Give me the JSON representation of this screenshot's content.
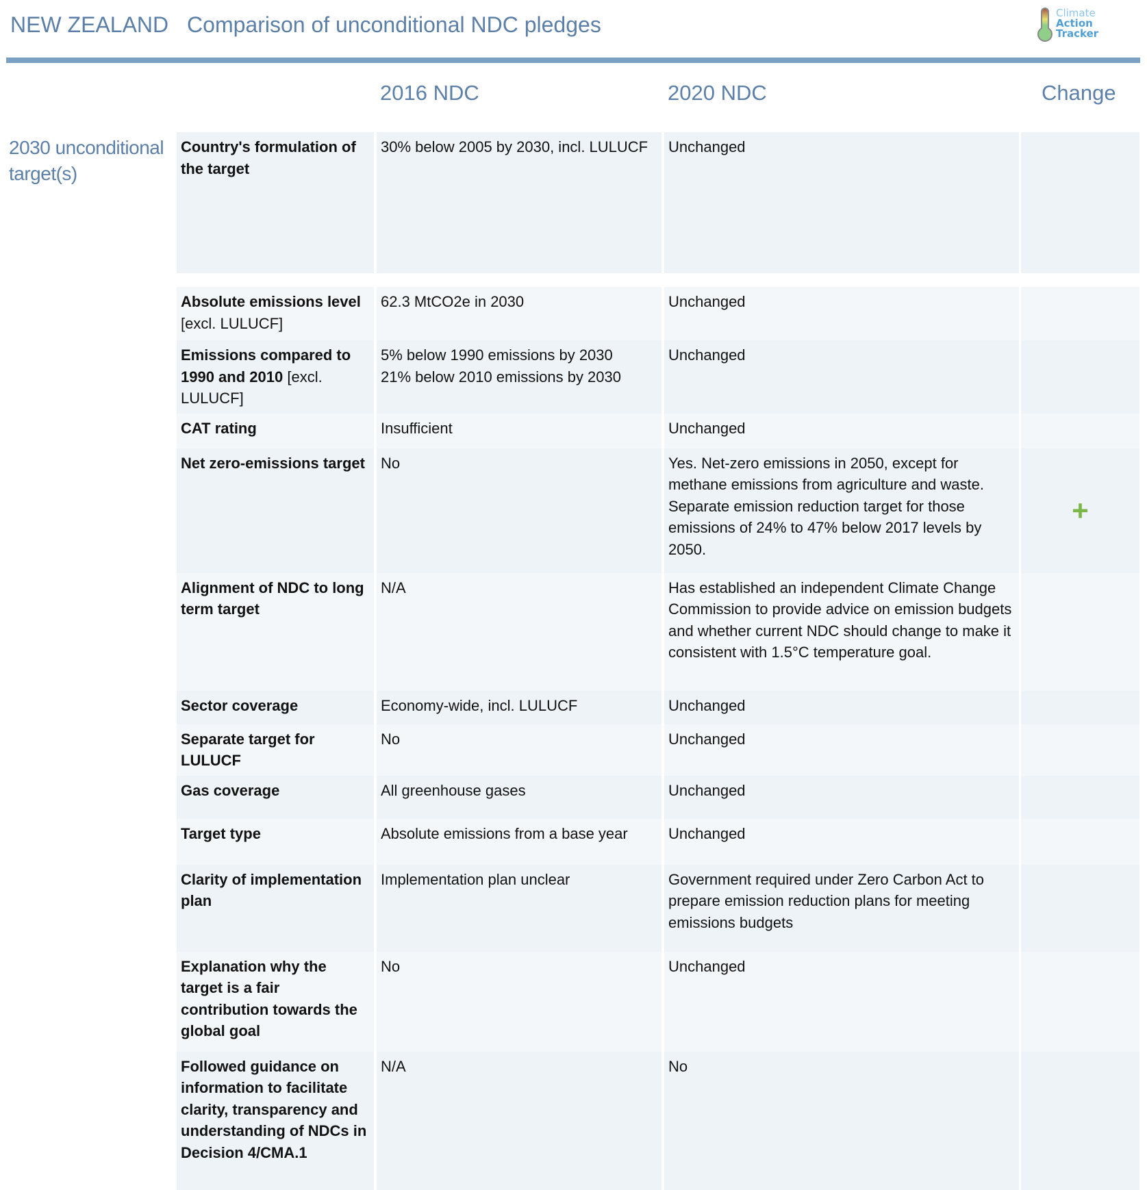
{
  "header": {
    "country": "NEW ZEALAND",
    "title": "Comparison of unconditional NDC pledges",
    "logo": {
      "line1": "Climate",
      "line2": "Action",
      "line3": "Tracker"
    }
  },
  "columns": {
    "c1": "2016 NDC",
    "c2": "2020 NDC",
    "c3": "Change"
  },
  "section": "2030 unconditional target(s)",
  "accent_color": "#5b7fa8",
  "change_icon_color": "#7ab648",
  "rows": [
    {
      "label": "Country's formulation of the target",
      "label_note": "",
      "ndc2016": "30% below 2005 by 2030, incl. LULUCF",
      "ndc2020": "Unchanged",
      "change": ""
    },
    {
      "label": "Absolute emissions level",
      "label_note": "[excl. LULUCF]",
      "ndc2016": "62.3 MtCO2e in 2030",
      "ndc2020": "Unchanged",
      "change": ""
    },
    {
      "label": "Emissions compared to 1990 and 2010",
      "label_note": "[excl. LULUCF]",
      "ndc2016": "5% below 1990 emissions by 2030\n21% below 2010 emissions by 2030",
      "ndc2020": "Unchanged",
      "change": ""
    },
    {
      "label": "CAT rating",
      "label_note": "",
      "ndc2016": "Insufficient",
      "ndc2020": "Unchanged",
      "change": ""
    },
    {
      "label": "Net zero-emissions target",
      "label_note": "",
      "ndc2016": "No",
      "ndc2020": "Yes. Net-zero emissions in 2050, except for methane emissions from agriculture and waste. Separate emission reduction target for those emissions of 24% to 47% below 2017 levels by 2050.",
      "change": "plus"
    },
    {
      "label": "Alignment of NDC to long term target",
      "label_note": "",
      "ndc2016": "N/A",
      "ndc2020": "Has established an independent Climate Change Commission to provide advice on emission budgets and whether current NDC should change to make it consistent with 1.5°C temperature goal.",
      "change": ""
    },
    {
      "label": "Sector coverage",
      "label_note": "",
      "ndc2016": "Economy-wide, incl. LULUCF",
      "ndc2020": "Unchanged",
      "change": ""
    },
    {
      "label": "Separate target for LULUCF",
      "label_note": "",
      "ndc2016": "No",
      "ndc2020": "Unchanged",
      "change": ""
    },
    {
      "label": "Gas coverage",
      "label_note": "",
      "ndc2016": "All greenhouse gases",
      "ndc2020": "Unchanged",
      "change": ""
    },
    {
      "label": "Target type",
      "label_note": "",
      "ndc2016": "Absolute emissions from a base year",
      "ndc2020": "Unchanged",
      "change": ""
    },
    {
      "label": "Clarity of implementation plan",
      "label_note": "",
      "ndc2016": "Implementation plan unclear",
      "ndc2020": "Government required under Zero Carbon Act to prepare emission reduction plans for meeting emissions budgets",
      "change": ""
    },
    {
      "label": "Explanation why the target is a fair contribution towards the global goal",
      "label_note": "",
      "ndc2016": "No",
      "ndc2020": "Unchanged",
      "change": ""
    },
    {
      "label": "Followed guidance on information to facilitate clarity, transparency and understanding of NDCs in Decision 4/CMA.1",
      "label_note": "",
      "ndc2016": "N/A",
      "ndc2020": "No",
      "change": ""
    }
  ]
}
